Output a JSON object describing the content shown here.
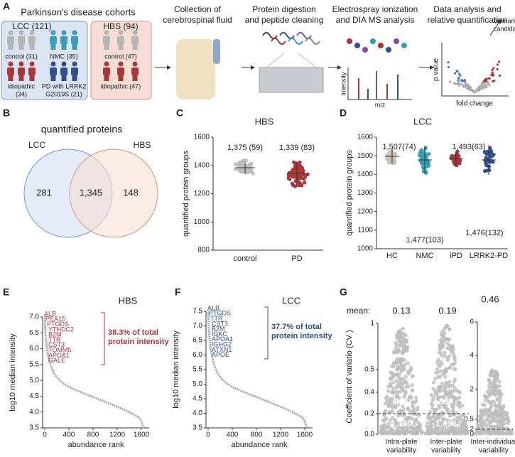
{
  "panel_a": {
    "letter": "A",
    "cohorts_title": "Parkinson's disease cohorts",
    "lcc": {
      "title": "LCC (121)",
      "groups": [
        [
          "control (31)"
        ],
        [
          "NMC (35)"
        ],
        [
          "idiopathic",
          "(34)"
        ],
        [
          "PD with LRRK2",
          "G2019S (21)"
        ]
      ]
    },
    "hbs": {
      "title": "HBS (94)",
      "groups": [
        [
          "control (47)"
        ],
        [
          "idiopathic (47)"
        ]
      ]
    },
    "steps": [
      [
        "Collection of",
        "cerebrospinal fluid"
      ],
      [
        "Protein digestion",
        "and peptide cleaning"
      ],
      [
        "Electrospray ionization",
        "and DIA MS analysis"
      ],
      [
        "Data analysis and",
        "relative quantification"
      ]
    ],
    "ms_axes": {
      "y": "intensity",
      "x": "m/z"
    },
    "volcano": {
      "y": "p value",
      "x": "fold change",
      "callout": [
        "biomarker",
        "candidates"
      ]
    }
  },
  "panel_b": {
    "letter": "B",
    "title": "quantified proteins",
    "left": "LCC",
    "right": "HBS",
    "counts": [
      "281",
      "1,345",
      "148"
    ]
  },
  "panel_c": {
    "letter": "C",
    "title": "HBS",
    "ylabel": "quantified protein groups",
    "yticks": [
      "800",
      "1000",
      "1200",
      "1400",
      "1600"
    ],
    "categories": [
      "control",
      "PD"
    ],
    "annotations": [
      "1,375 (59)",
      "1,339 (83)"
    ]
  },
  "panel_d": {
    "letter": "D",
    "title": "LCC",
    "ylabel": "quantified protein groups",
    "yticks": [
      "1000",
      "1100",
      "1200",
      "1300",
      "1400",
      "1500",
      "1600"
    ],
    "categories": [
      "HC",
      "NMC",
      "iPD",
      "LRRK2-PD"
    ],
    "annotations": [
      "1,507(74)",
      "1,477(103)",
      "1,493(63)",
      "1,476(132)"
    ]
  },
  "panel_e": {
    "letter": "E",
    "title": "HBS",
    "ylabel": "log10 median intensity",
    "xlabel": "abundance rank",
    "xticks": [
      "0",
      "400",
      "800",
      "1200",
      "1600"
    ],
    "yticks": [
      "3.5",
      "4.0",
      "4.5",
      "5.0",
      "5.5",
      "6.0",
      "6.5",
      "7.0"
    ],
    "proteins": [
      "ALB",
      "PEA15",
      "PTGDS",
      "YTHDC2",
      "B2M",
      "TTR",
      "CST3",
      "TOMM5",
      "APOA1",
      "GALE"
    ],
    "note": [
      "38.3% of total",
      "protein intensity"
    ]
  },
  "panel_f": {
    "letter": "F",
    "title": "LCC",
    "ylabel": "log10 median intensity",
    "xlabel": "abundance rank",
    "xticks": [
      "0",
      "400",
      "800",
      "1200",
      "1600"
    ],
    "yticks": [
      "3.5",
      "4.0",
      "4.5",
      "5.0",
      "5.5",
      "6.0",
      "6.5",
      "7.0",
      "7.5"
    ],
    "proteins": [
      "ALB",
      "PTGDS",
      "TTR",
      "CST3",
      "B2M",
      "IGKC",
      "APOA1",
      "IGHG2",
      "ATXN1",
      "APOE"
    ],
    "note": [
      "37.7% of total",
      "protein intensity"
    ]
  },
  "panel_g": {
    "letter": "G",
    "mean_label": "mean:",
    "means": [
      "0.13",
      "0.19",
      "0.46"
    ],
    "ylabel": "Coefficient of variatio (CV )",
    "left_yticks": [
      "0.0",
      "0.2",
      "0.4",
      "0.5",
      "1"
    ],
    "right_yticks": [
      "0",
      "0.2",
      "0.5",
      "2",
      "4",
      "6"
    ],
    "counts": [
      "496",
      "530",
      "1,130",
      "1,096"
    ],
    "categories": [
      [
        "Intra-plate",
        "variability"
      ],
      [
        "Inter-plate",
        "variability"
      ],
      [
        "Inter-individual",
        "variability"
      ]
    ]
  }
}
